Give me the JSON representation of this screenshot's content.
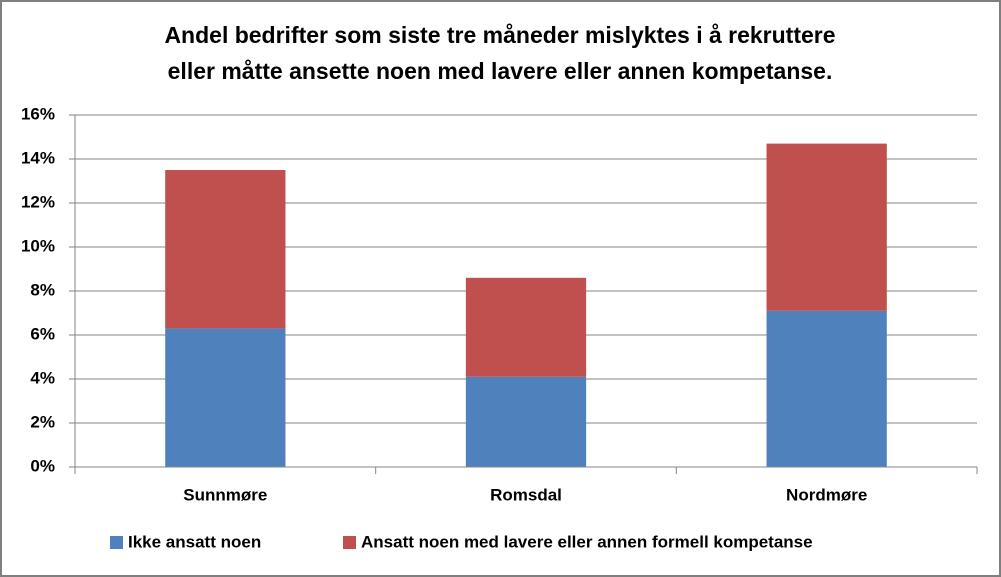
{
  "chart_data": {
    "type": "stacked-bar",
    "title": [
      "Andel bedrifter som siste tre måneder mislyktes i å rekruttere",
      "eller måtte ansette noen med lavere eller annen kompetanse."
    ],
    "categories": [
      "Sunnmøre",
      "Romsdal",
      "Nordmøre"
    ],
    "series": [
      {
        "name": "Ikke ansatt noen",
        "color": "#4f81bd",
        "values": [
          6.3,
          4.1,
          7.1
        ]
      },
      {
        "name": "Ansatt noen med lavere eller annen formell kompetanse",
        "color": "#c0504d",
        "values": [
          7.2,
          4.5,
          7.6
        ]
      }
    ],
    "ylim": [
      0,
      16
    ],
    "yticks": [
      {
        "value": 0,
        "label": "0%"
      },
      {
        "value": 2,
        "label": "2%"
      },
      {
        "value": 4,
        "label": "4%"
      },
      {
        "value": 6,
        "label": "6%"
      },
      {
        "value": 8,
        "label": "8%"
      },
      {
        "value": 10,
        "label": "10%"
      },
      {
        "value": 12,
        "label": "12%"
      },
      {
        "value": 14,
        "label": "14%"
      },
      {
        "value": 16,
        "label": "16%"
      }
    ],
    "grid": true,
    "legend": "bottom"
  }
}
